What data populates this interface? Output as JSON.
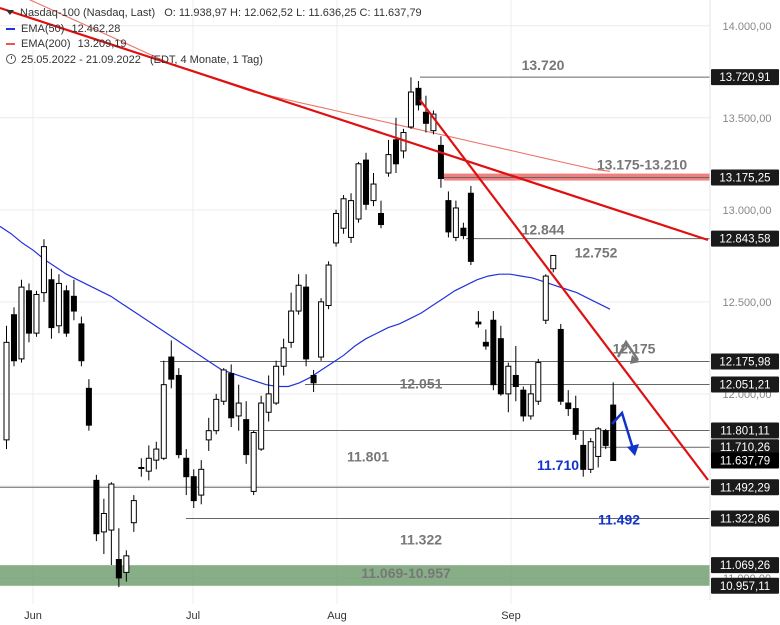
{
  "legend": {
    "instrument": "Nasdaq-100 (Nasdaq, Last)",
    "ohlc": "O: 11.938,97  H: 12.062,52  L: 11.636,25  C: 11.637,79",
    "ema50_label": "EMA(50)",
    "ema50_value": "12.462,28",
    "ema200_label": "EMA(200)",
    "ema200_value": "13.209,19",
    "range": "25.05.2022 - 21.09.2022",
    "range_info": "(EDT, 4 Monate, 1 Tag)"
  },
  "colors": {
    "up_candle": "#ffffff",
    "down_candle": "#000000",
    "ema50": "#2233dd",
    "ema200": "#e85a50",
    "trend": "#e01010",
    "zone_red": "#f08080",
    "zone_green": "#6a9a6a",
    "forecast": "#1133cc",
    "level_line": "#666666"
  },
  "chart_data": {
    "type": "candlestick",
    "x_axis": {
      "tick_labels": [
        "Jun",
        "Jul",
        "Aug",
        "Sep"
      ]
    },
    "y_axis": {
      "ylim": [
        10880,
        14140
      ],
      "tick_values": [
        11000,
        11500,
        12000,
        12500,
        13000,
        13500,
        14000
      ],
      "tick_labels": [
        "11.000,00",
        "11.500,00",
        "12.000,00",
        "12.500,00",
        "13.000,00",
        "13.500,00",
        "14.000,00"
      ]
    },
    "candles": [
      {
        "o": 11750,
        "h": 12370,
        "l": 11700,
        "c": 12280
      },
      {
        "o": 12430,
        "h": 12470,
        "l": 12150,
        "c": 12180
      },
      {
        "o": 12190,
        "h": 12620,
        "l": 12170,
        "c": 12580
      },
      {
        "o": 12560,
        "h": 12600,
        "l": 12280,
        "c": 12330
      },
      {
        "o": 12330,
        "h": 12560,
        "l": 12310,
        "c": 12540
      },
      {
        "o": 12550,
        "h": 12840,
        "l": 12500,
        "c": 12800
      },
      {
        "o": 12620,
        "h": 12680,
        "l": 12300,
        "c": 12360
      },
      {
        "o": 12370,
        "h": 12650,
        "l": 12330,
        "c": 12600
      },
      {
        "o": 12560,
        "h": 12590,
        "l": 12310,
        "c": 12330
      },
      {
        "o": 12530,
        "h": 12620,
        "l": 12400,
        "c": 12450
      },
      {
        "o": 12380,
        "h": 12420,
        "l": 12150,
        "c": 12180
      },
      {
        "o": 12030,
        "h": 12080,
        "l": 11800,
        "c": 11830
      },
      {
        "o": 11530,
        "h": 11560,
        "l": 11200,
        "c": 11240
      },
      {
        "o": 11250,
        "h": 11430,
        "l": 11130,
        "c": 11350
      },
      {
        "o": 11260,
        "h": 11520,
        "l": 11070,
        "c": 11510
      },
      {
        "o": 11100,
        "h": 11270,
        "l": 10950,
        "c": 11000
      },
      {
        "o": 11030,
        "h": 11150,
        "l": 10980,
        "c": 11120
      },
      {
        "o": 11300,
        "h": 11450,
        "l": 11250,
        "c": 11420
      },
      {
        "o": 11600,
        "h": 11650,
        "l": 11550,
        "c": 11600
      },
      {
        "o": 11580,
        "h": 11720,
        "l": 11530,
        "c": 11650
      },
      {
        "o": 11640,
        "h": 11740,
        "l": 11590,
        "c": 11700
      },
      {
        "o": 11650,
        "h": 12180,
        "l": 11640,
        "c": 12050
      },
      {
        "o": 12200,
        "h": 12290,
        "l": 12030,
        "c": 12080
      },
      {
        "o": 12100,
        "h": 12140,
        "l": 11650,
        "c": 11670
      },
      {
        "o": 11650,
        "h": 11700,
        "l": 11450,
        "c": 11550
      },
      {
        "o": 11550,
        "h": 11590,
        "l": 11380,
        "c": 11420
      },
      {
        "o": 11450,
        "h": 11640,
        "l": 11400,
        "c": 11590
      },
      {
        "o": 11750,
        "h": 11870,
        "l": 11690,
        "c": 11800
      },
      {
        "o": 11800,
        "h": 12000,
        "l": 11780,
        "c": 11970
      },
      {
        "o": 11960,
        "h": 12140,
        "l": 11940,
        "c": 12130
      },
      {
        "o": 12110,
        "h": 12160,
        "l": 11820,
        "c": 11870
      },
      {
        "o": 11880,
        "h": 12050,
        "l": 11800,
        "c": 11950
      },
      {
        "o": 11860,
        "h": 11960,
        "l": 11620,
        "c": 11670
      },
      {
        "o": 11470,
        "h": 11800,
        "l": 11450,
        "c": 11790
      },
      {
        "o": 11700,
        "h": 11990,
        "l": 11690,
        "c": 11950
      },
      {
        "o": 11900,
        "h": 12100,
        "l": 11850,
        "c": 12000
      },
      {
        "o": 11950,
        "h": 12180,
        "l": 11940,
        "c": 12150
      },
      {
        "o": 12150,
        "h": 12300,
        "l": 12100,
        "c": 12250
      },
      {
        "o": 12280,
        "h": 12550,
        "l": 12250,
        "c": 12450
      },
      {
        "o": 12450,
        "h": 12650,
        "l": 12430,
        "c": 12590
      },
      {
        "o": 12580,
        "h": 12650,
        "l": 12150,
        "c": 12190
      },
      {
        "o": 12100,
        "h": 12130,
        "l": 12010,
        "c": 12060
      },
      {
        "o": 12200,
        "h": 12520,
        "l": 12180,
        "c": 12500
      },
      {
        "o": 12480,
        "h": 12720,
        "l": 12460,
        "c": 12700
      },
      {
        "o": 12820,
        "h": 13000,
        "l": 12800,
        "c": 12980
      },
      {
        "o": 12900,
        "h": 13080,
        "l": 12870,
        "c": 13060
      },
      {
        "o": 12850,
        "h": 13090,
        "l": 12820,
        "c": 13050
      },
      {
        "o": 12950,
        "h": 13260,
        "l": 12930,
        "c": 13250
      },
      {
        "o": 13270,
        "h": 13310,
        "l": 13000,
        "c": 13030
      },
      {
        "o": 13050,
        "h": 13200,
        "l": 13020,
        "c": 13140
      },
      {
        "o": 12980,
        "h": 13050,
        "l": 12900,
        "c": 12920
      },
      {
        "o": 13200,
        "h": 13380,
        "l": 13180,
        "c": 13300
      },
      {
        "o": 13380,
        "h": 13500,
        "l": 13200,
        "c": 13250
      },
      {
        "o": 13320,
        "h": 13440,
        "l": 13280,
        "c": 13420
      },
      {
        "o": 13450,
        "h": 13720,
        "l": 13440,
        "c": 13640
      },
      {
        "o": 13660,
        "h": 13700,
        "l": 13540,
        "c": 13570
      },
      {
        "o": 13530,
        "h": 13620,
        "l": 13420,
        "c": 13470
      },
      {
        "o": 13430,
        "h": 13540,
        "l": 13410,
        "c": 13520
      },
      {
        "o": 13350,
        "h": 13400,
        "l": 13120,
        "c": 13170
      },
      {
        "o": 13050,
        "h": 13100,
        "l": 12850,
        "c": 12880
      },
      {
        "o": 12850,
        "h": 13050,
        "l": 12830,
        "c": 13010
      },
      {
        "o": 12900,
        "h": 12930,
        "l": 12840,
        "c": 12860
      },
      {
        "o": 13090,
        "h": 13130,
        "l": 12700,
        "c": 12720
      },
      {
        "o": 12390,
        "h": 12450,
        "l": 12360,
        "c": 12380
      },
      {
        "o": 12280,
        "h": 12350,
        "l": 12240,
        "c": 12260
      },
      {
        "o": 12400,
        "h": 12450,
        "l": 12020,
        "c": 12050
      },
      {
        "o": 12300,
        "h": 12370,
        "l": 11990,
        "c": 12000
      },
      {
        "o": 12000,
        "h": 12170,
        "l": 11900,
        "c": 12150
      },
      {
        "o": 12100,
        "h": 12260,
        "l": 11960,
        "c": 12040
      },
      {
        "o": 12020,
        "h": 12040,
        "l": 11850,
        "c": 11880
      },
      {
        "o": 11880,
        "h": 12050,
        "l": 11860,
        "c": 12000
      },
      {
        "o": 11960,
        "h": 12190,
        "l": 11940,
        "c": 12170
      },
      {
        "o": 12400,
        "h": 12650,
        "l": 12380,
        "c": 12640
      },
      {
        "o": 12680,
        "h": 12752,
        "l": 12660,
        "c": 12752
      },
      {
        "o": 12350,
        "h": 12380,
        "l": 11940,
        "c": 11960
      },
      {
        "o": 11950,
        "h": 12020,
        "l": 11880,
        "c": 11920
      },
      {
        "o": 11920,
        "h": 11990,
        "l": 11750,
        "c": 11780
      },
      {
        "o": 11720,
        "h": 11800,
        "l": 11550,
        "c": 11590
      },
      {
        "o": 11590,
        "h": 11760,
        "l": 11570,
        "c": 11740
      },
      {
        "o": 11660,
        "h": 11820,
        "l": 11600,
        "c": 11810
      },
      {
        "o": 11800,
        "h": 11810,
        "l": 11700,
        "c": 11720
      },
      {
        "o": 11938.97,
        "h": 12062.52,
        "l": 11636.25,
        "c": 11637.79
      }
    ],
    "ema50": [
      12910,
      12870,
      12820,
      12780,
      12730,
      12690,
      12650,
      12620,
      12590,
      12560,
      12530,
      12490,
      12450,
      12410,
      12370,
      12330,
      12290,
      12250,
      12210,
      12170,
      12130,
      12110,
      12090,
      12070,
      12050,
      12040,
      12040,
      12060,
      12090,
      12130,
      12170,
      12210,
      12260,
      12300,
      12330,
      12360,
      12380,
      12410,
      12440,
      12480,
      12520,
      12560,
      12590,
      12620,
      12640,
      12650,
      12650,
      12640,
      12630,
      12610,
      12590,
      12570,
      12550,
      12520,
      12490,
      12460
    ],
    "ema200": [
      14190,
      14150,
      14110,
      14070,
      14030,
      13990,
      13950,
      13910,
      13870,
      13830,
      13790,
      13760,
      13730,
      13700,
      13670,
      13640,
      13620,
      13600,
      13580,
      13560,
      13540,
      13520,
      13500,
      13480,
      13460,
      13440,
      13420,
      13400,
      13380,
      13360,
      13340,
      13320,
      13300,
      13280,
      13260,
      13240,
      13220,
      13209
    ],
    "horizontal_levels": [
      {
        "value": 13720.91,
        "label": "13.720",
        "tag": "13.720,91"
      },
      {
        "value": 13175.25,
        "label": "13.175-13.210",
        "tag": "13.175,25",
        "zone": true
      },
      {
        "value": 12843.58,
        "label": "12.844",
        "tag": "12.843,58"
      },
      {
        "value": 12752,
        "label": "12.752"
      },
      {
        "value": 12175.98,
        "label": "12.175",
        "tag": "12.175,98"
      },
      {
        "value": 12051.21,
        "label": "12.051",
        "tag": "12.051,21"
      },
      {
        "value": 11801.11,
        "label": "11.801",
        "tag": "11.801,11"
      },
      {
        "value": 11710.26,
        "label": "11.710",
        "tag": "11.710,26"
      },
      {
        "value": 11637.79,
        "tag": "11.637,79",
        "current": true
      },
      {
        "value": 11492.29,
        "label": "11.492",
        "tag": "11.492,29"
      },
      {
        "value": 11322.86,
        "label": "11.322",
        "tag": "11.322,86"
      },
      {
        "value": 11069.26,
        "tag": "11.069,26"
      },
      {
        "value": 10957.11,
        "tag": "10.957,11"
      }
    ],
    "support_zone_label": "11.069-10.957",
    "forecast_labels": [
      "11.710",
      "11.492"
    ]
  }
}
